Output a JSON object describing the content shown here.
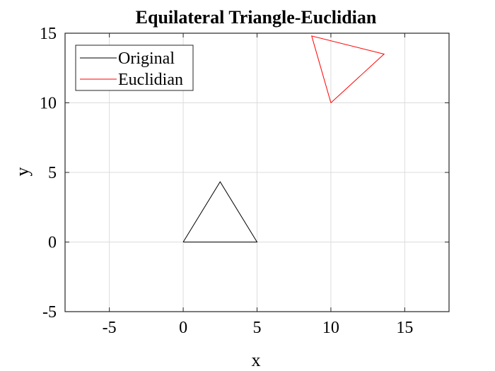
{
  "chart_data": {
    "type": "line",
    "title": "Equilateral Triangle-Euclidian",
    "xlabel": "x",
    "ylabel": "y",
    "xlim": [
      -8,
      18
    ],
    "ylim": [
      -5,
      15
    ],
    "xticks": [
      -5,
      0,
      5,
      10,
      15
    ],
    "yticks": [
      -5,
      0,
      5,
      10,
      15
    ],
    "grid": true,
    "legend_position": "top-left",
    "series": [
      {
        "name": "Original",
        "color": "#000000",
        "x": [
          0,
          5,
          2.5,
          0
        ],
        "y": [
          0,
          0,
          4.33,
          0
        ]
      },
      {
        "name": "Euclidian",
        "color": "#ff0000",
        "x": [
          10,
          13.6,
          8.7,
          10
        ],
        "y": [
          10,
          13.5,
          14.8,
          10
        ]
      }
    ]
  }
}
